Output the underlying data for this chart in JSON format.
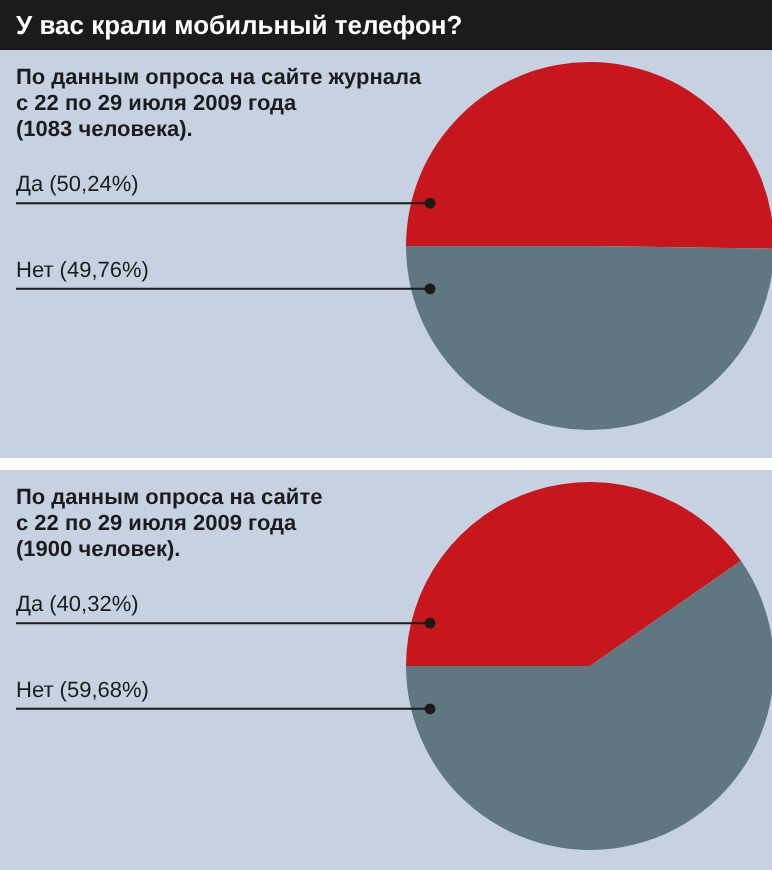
{
  "chart_data": [
    {
      "type": "pie",
      "title": "У вас крали мобильный телефон?",
      "subtitle": "По данным опроса на сайте журнала\nс  22 по 29 июля 2009 года\n(1083 человека).",
      "categories": [
        "Да",
        "Нет"
      ],
      "values": [
        50.24,
        49.76
      ],
      "colors": [
        "#c8161d",
        "#5f7781"
      ],
      "value_labels": [
        "(50,24%)",
        "(49,76%)"
      ]
    },
    {
      "type": "pie",
      "subtitle": "По данным опроса на сайте\nс  22 по 29 июля 2009 года\n(1900 человек).",
      "categories": [
        "Да",
        "Нет"
      ],
      "values": [
        40.32,
        59.68
      ],
      "colors": [
        "#c8161d",
        "#5f7781"
      ],
      "value_labels": [
        "(40,32%)",
        "(59,68%)"
      ]
    }
  ]
}
